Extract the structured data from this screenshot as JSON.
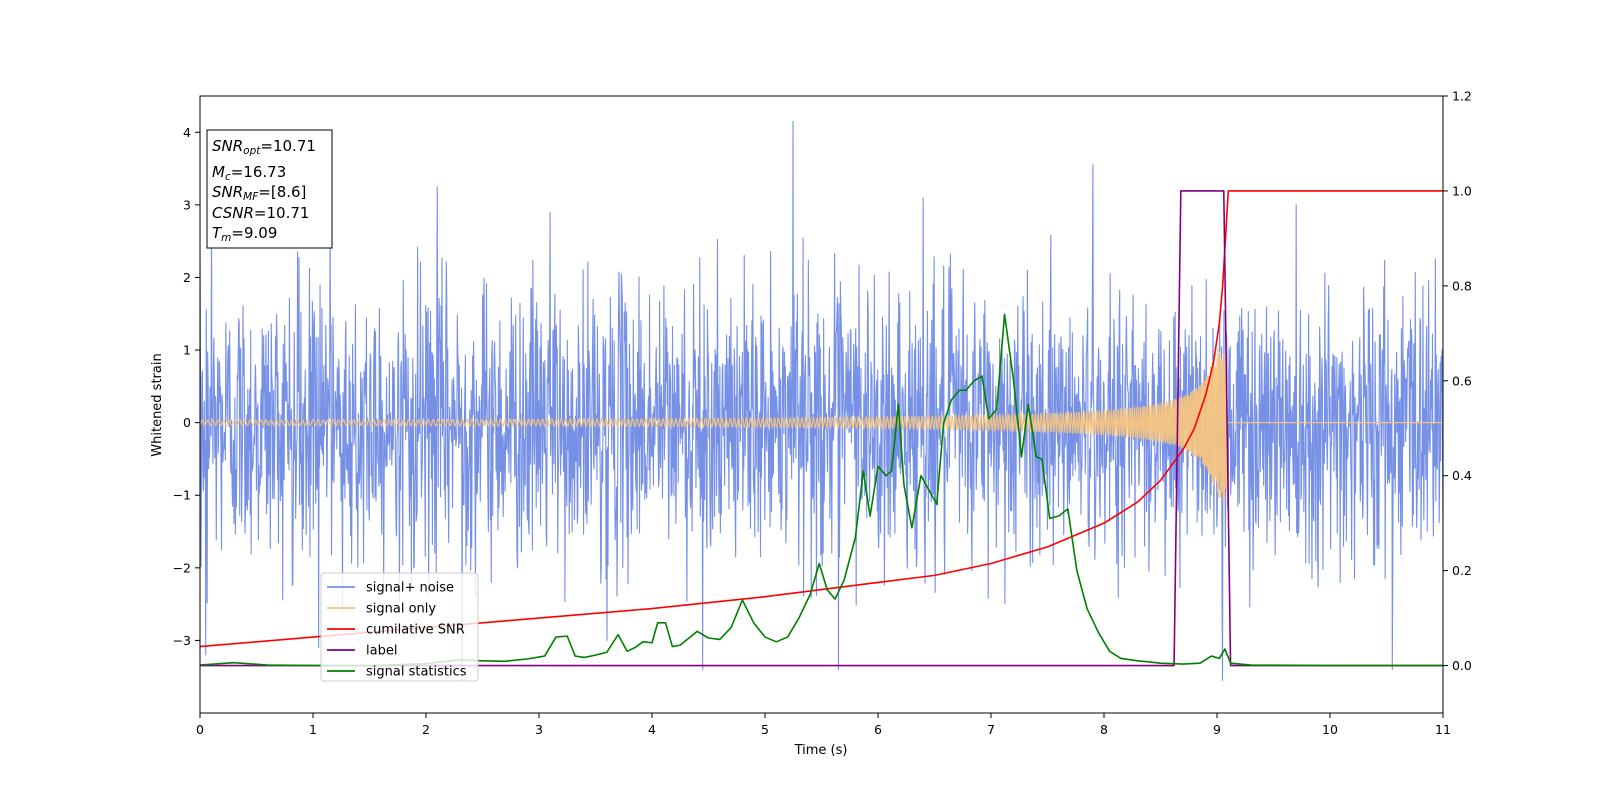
{
  "chart_data": {
    "type": "line",
    "xlabel": "Time (s)",
    "ylabel": "Whitened strain",
    "xlim": [
      0,
      11
    ],
    "ylim_left": [
      -4,
      4.5
    ],
    "ylim_right": [
      -0.1,
      1.2
    ],
    "x_ticks": [
      "0",
      "1",
      "2",
      "3",
      "4",
      "5",
      "6",
      "7",
      "8",
      "9",
      "10",
      "11"
    ],
    "y_ticks_left": [
      {
        "v": -3,
        "t": "−3"
      },
      {
        "v": -2,
        "t": "−2"
      },
      {
        "v": -1,
        "t": "−1"
      },
      {
        "v": 0,
        "t": "0"
      },
      {
        "v": 1,
        "t": "1"
      },
      {
        "v": 2,
        "t": "2"
      },
      {
        "v": 3,
        "t": "3"
      },
      {
        "v": 4,
        "t": "4"
      }
    ],
    "y_ticks_right": [
      {
        "v": 0.0,
        "t": "0.0"
      },
      {
        "v": 0.2,
        "t": "0.2"
      },
      {
        "v": 0.4,
        "t": "0.4"
      },
      {
        "v": 0.6,
        "t": "0.6"
      },
      {
        "v": 0.8,
        "t": "0.8"
      },
      {
        "v": 1.0,
        "t": "1.0"
      },
      {
        "v": 1.2,
        "t": "1.2"
      }
    ],
    "grid": false,
    "legend_position": "lower-left",
    "info_box": [
      {
        "base": "SNR",
        "sub": "opt",
        "value": "=10.71"
      },
      {
        "base": "M",
        "sub": "c",
        "value": "=16.73"
      },
      {
        "base": "SNR",
        "sub": "MF",
        "value": "=[8.6]"
      },
      {
        "base": "CSNR",
        "sub": "",
        "value": "=10.71"
      },
      {
        "base": "T",
        "sub": "m",
        "value": "=9.09"
      }
    ],
    "series": [
      {
        "name": "signal+ noise",
        "axis": "left",
        "color": "#7690e6",
        "kind": "noise",
        "spikes": [
          [
            0.1,
            2.8
          ],
          [
            1.15,
            2.9
          ],
          [
            1.26,
            -2.6
          ],
          [
            2.1,
            3.25
          ],
          [
            2.32,
            -3.55
          ],
          [
            3.1,
            2.9
          ],
          [
            4.45,
            -3.4
          ],
          [
            5.25,
            4.15
          ],
          [
            5.65,
            -3.4
          ],
          [
            6.4,
            3.1
          ],
          [
            7.9,
            3.55
          ],
          [
            9.05,
            -3.55
          ],
          [
            9.7,
            3.0
          ],
          [
            10.55,
            -3.4
          ],
          [
            1.05,
            -3.1
          ],
          [
            3.6,
            -3.0
          ],
          [
            0.05,
            -3.2
          ]
        ]
      },
      {
        "name": "signal only",
        "axis": "left",
        "color": "#f5c480",
        "kind": "chirp",
        "t_merge": 9.09,
        "amp_early": 0.035,
        "amp_peak": 1.05
      },
      {
        "name": "cumilative SNR",
        "axis": "right",
        "color": "#ff0000",
        "points": [
          [
            0,
            0.04
          ],
          [
            1,
            0.06
          ],
          [
            2,
            0.08
          ],
          [
            3,
            0.1
          ],
          [
            4,
            0.12
          ],
          [
            5,
            0.145
          ],
          [
            6,
            0.175
          ],
          [
            6.5,
            0.19
          ],
          [
            7,
            0.215
          ],
          [
            7.5,
            0.25
          ],
          [
            8,
            0.3
          ],
          [
            8.3,
            0.345
          ],
          [
            8.5,
            0.39
          ],
          [
            8.7,
            0.455
          ],
          [
            8.8,
            0.5
          ],
          [
            8.9,
            0.57
          ],
          [
            8.97,
            0.64
          ],
          [
            9.02,
            0.72
          ],
          [
            9.05,
            0.8
          ],
          [
            9.08,
            0.92
          ],
          [
            9.1,
            1.0
          ],
          [
            11,
            1.0
          ]
        ]
      },
      {
        "name": "label",
        "axis": "right",
        "color": "#800080",
        "points": [
          [
            0,
            0
          ],
          [
            8.62,
            0
          ],
          [
            8.68,
            1.0
          ],
          [
            9.06,
            1.0
          ],
          [
            9.12,
            0
          ],
          [
            11,
            0
          ]
        ]
      },
      {
        "name": "signal statistics",
        "axis": "right",
        "color": "#008000",
        "points": [
          [
            0,
            0.001
          ],
          [
            0.3,
            0.006
          ],
          [
            0.6,
            0.001
          ],
          [
            1,
            0.0
          ],
          [
            1.5,
            0.0
          ],
          [
            2,
            0.004
          ],
          [
            2.3,
            0.012
          ],
          [
            2.5,
            0.01
          ],
          [
            2.7,
            0.009
          ],
          [
            2.9,
            0.014
          ],
          [
            3.05,
            0.02
          ],
          [
            3.15,
            0.06
          ],
          [
            3.25,
            0.062
          ],
          [
            3.32,
            0.02
          ],
          [
            3.4,
            0.017
          ],
          [
            3.5,
            0.022
          ],
          [
            3.6,
            0.028
          ],
          [
            3.7,
            0.065
          ],
          [
            3.78,
            0.03
          ],
          [
            3.85,
            0.038
          ],
          [
            3.92,
            0.05
          ],
          [
            4,
            0.048
          ],
          [
            4.05,
            0.09
          ],
          [
            4.12,
            0.09
          ],
          [
            4.18,
            0.04
          ],
          [
            4.25,
            0.043
          ],
          [
            4.4,
            0.072
          ],
          [
            4.5,
            0.058
          ],
          [
            4.6,
            0.055
          ],
          [
            4.7,
            0.08
          ],
          [
            4.8,
            0.138
          ],
          [
            4.9,
            0.09
          ],
          [
            5,
            0.06
          ],
          [
            5.1,
            0.05
          ],
          [
            5.2,
            0.06
          ],
          [
            5.3,
            0.1
          ],
          [
            5.4,
            0.15
          ],
          [
            5.48,
            0.215
          ],
          [
            5.55,
            0.16
          ],
          [
            5.62,
            0.14
          ],
          [
            5.7,
            0.18
          ],
          [
            5.8,
            0.27
          ],
          [
            5.87,
            0.41
          ],
          [
            5.93,
            0.315
          ],
          [
            6,
            0.42
          ],
          [
            6.07,
            0.4
          ],
          [
            6.12,
            0.41
          ],
          [
            6.18,
            0.55
          ],
          [
            6.23,
            0.38
          ],
          [
            6.3,
            0.29
          ],
          [
            6.38,
            0.4
          ],
          [
            6.45,
            0.37
          ],
          [
            6.52,
            0.34
          ],
          [
            6.58,
            0.51
          ],
          [
            6.65,
            0.56
          ],
          [
            6.72,
            0.58
          ],
          [
            6.78,
            0.58
          ],
          [
            6.85,
            0.6
          ],
          [
            6.92,
            0.61
          ],
          [
            6.98,
            0.52
          ],
          [
            7.05,
            0.54
          ],
          [
            7.12,
            0.74
          ],
          [
            7.2,
            0.6
          ],
          [
            7.27,
            0.44
          ],
          [
            7.33,
            0.55
          ],
          [
            7.4,
            0.44
          ],
          [
            7.45,
            0.435
          ],
          [
            7.52,
            0.31
          ],
          [
            7.6,
            0.315
          ],
          [
            7.68,
            0.33
          ],
          [
            7.76,
            0.2
          ],
          [
            7.85,
            0.12
          ],
          [
            7.95,
            0.07
          ],
          [
            8.05,
            0.03
          ],
          [
            8.15,
            0.015
          ],
          [
            8.3,
            0.01
          ],
          [
            8.5,
            0.005
          ],
          [
            8.7,
            0.003
          ],
          [
            8.85,
            0.005
          ],
          [
            8.95,
            0.02
          ],
          [
            9.02,
            0.015
          ],
          [
            9.07,
            0.035
          ],
          [
            9.12,
            0.005
          ],
          [
            9.3,
            0.001
          ],
          [
            10,
            0.0
          ],
          [
            11,
            0.0
          ]
        ]
      }
    ]
  }
}
